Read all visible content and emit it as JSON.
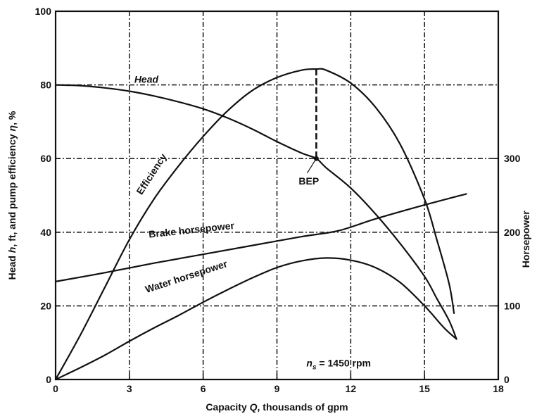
{
  "chart_data": {
    "type": "line",
    "x_label_prefix": "Capacity ",
    "x_label_var": "Q",
    "x_label_suffix": ", thousands of gpm",
    "y_label_prefix": "Head ",
    "y_label_h": "h",
    "y_label_mid": ", ft, and pump efficiency ",
    "y_label_eta": "η",
    "y_label_suffix": ", %",
    "y2_label": "Horsepower",
    "xlim": [
      0,
      18
    ],
    "ylim": [
      0,
      100
    ],
    "y2lim": [
      0,
      500
    ],
    "x_ticks": [
      "0",
      "3",
      "6",
      "9",
      "12",
      "15",
      "18"
    ],
    "y_ticks": [
      "0",
      "20",
      "40",
      "60",
      "80",
      "100"
    ],
    "y2_ticks": [
      "0",
      "100",
      "200",
      "300"
    ],
    "grid": true,
    "series": [
      {
        "name": "Head",
        "axis": "left",
        "label_style": "italic",
        "label_at": [
          3.2,
          80.6
        ],
        "label_rotate": 0,
        "points": [
          [
            0,
            80
          ],
          [
            1,
            79.8
          ],
          [
            2,
            79.2
          ],
          [
            3,
            78.3
          ],
          [
            4,
            77
          ],
          [
            5,
            75.4
          ],
          [
            6,
            73.5
          ],
          [
            7,
            71
          ],
          [
            8,
            68
          ],
          [
            9,
            64.6
          ],
          [
            10,
            61.5
          ],
          [
            10.6,
            60
          ],
          [
            11,
            57.5
          ],
          [
            12,
            52
          ],
          [
            13,
            45
          ],
          [
            14,
            37
          ],
          [
            15,
            28
          ],
          [
            15.5,
            22
          ],
          [
            16,
            16
          ],
          [
            16.3,
            11
          ]
        ]
      },
      {
        "name": "Efficiency",
        "axis": "left",
        "label_style": "upright",
        "label_at": [
          3.5,
          50
        ],
        "label_rotate": -57,
        "points": [
          [
            0,
            0
          ],
          [
            1,
            12
          ],
          [
            2,
            25
          ],
          [
            3,
            38
          ],
          [
            4,
            49
          ],
          [
            5,
            58
          ],
          [
            6,
            66
          ],
          [
            7,
            73
          ],
          [
            8,
            78.5
          ],
          [
            9,
            82
          ],
          [
            10,
            84
          ],
          [
            10.6,
            84.3
          ],
          [
            11,
            84
          ],
          [
            12,
            80.5
          ],
          [
            13,
            74
          ],
          [
            14,
            64
          ],
          [
            15,
            49
          ],
          [
            15.5,
            38
          ],
          [
            16,
            26
          ],
          [
            16.2,
            18
          ]
        ]
      },
      {
        "name": "Brake horsepower",
        "axis": "right",
        "label_style": "upright",
        "label_at": [
          3.8,
          38.5
        ],
        "label_rotate": -6,
        "points": [
          [
            0,
            133
          ],
          [
            2,
            145
          ],
          [
            4,
            158
          ],
          [
            6,
            170
          ],
          [
            8,
            182
          ],
          [
            10,
            194
          ],
          [
            11.5,
            202
          ],
          [
            13,
            218
          ],
          [
            15,
            237
          ],
          [
            16.7,
            252
          ]
        ]
      },
      {
        "name": "Water horsepower",
        "axis": "right",
        "label_style": "upright",
        "label_at": [
          3.7,
          23.5
        ],
        "label_rotate": -18,
        "points": [
          [
            0,
            0
          ],
          [
            1,
            16
          ],
          [
            2,
            33
          ],
          [
            3,
            52
          ],
          [
            4,
            70
          ],
          [
            5,
            87
          ],
          [
            6,
            105
          ],
          [
            7,
            122
          ],
          [
            8,
            138
          ],
          [
            9,
            152
          ],
          [
            10,
            161
          ],
          [
            11,
            165
          ],
          [
            12,
            162
          ],
          [
            13,
            152
          ],
          [
            14,
            132
          ],
          [
            15,
            100
          ],
          [
            15.8,
            70
          ],
          [
            16.3,
            55
          ]
        ]
      }
    ],
    "annotations": {
      "bep_label": "BEP",
      "bep_point": [
        10.6,
        60
      ],
      "bep_text_at": [
        10.4,
        53
      ],
      "speed_n": "n",
      "speed_sub": "s",
      "speed_rest": " = 1450 rpm",
      "speed_at": [
        10.2,
        3.5
      ]
    }
  }
}
